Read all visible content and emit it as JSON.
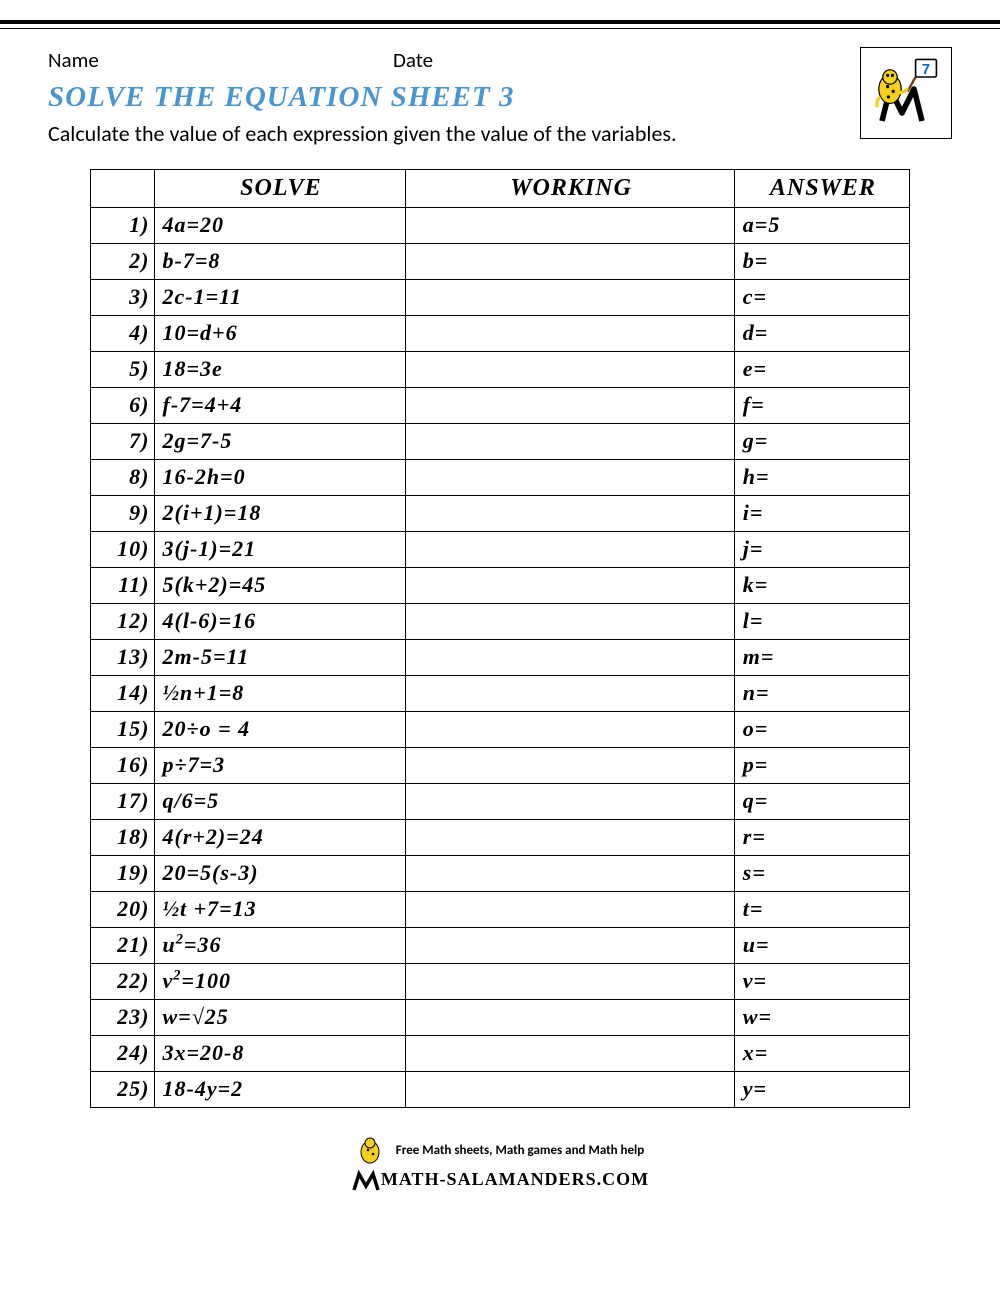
{
  "header": {
    "name_label": "Name",
    "date_label": "Date",
    "grade_badge": "7"
  },
  "title": "SOLVE THE EQUATION SHEET 3",
  "instructions": "Calculate the value of each expression given the value of the variables.",
  "columns": {
    "solve": "SOLVE",
    "working": "WORKING",
    "answer": "ANSWER"
  },
  "rows": [
    {
      "n": "1)",
      "solve": "4a=20",
      "answer": "a=5"
    },
    {
      "n": "2)",
      "solve": "b-7=8",
      "answer": "b="
    },
    {
      "n": "3)",
      "solve": "2c-1=11",
      "answer": "c="
    },
    {
      "n": "4)",
      "solve": "10=d+6",
      "answer": "d="
    },
    {
      "n": "5)",
      "solve": "18=3e",
      "answer": "e="
    },
    {
      "n": "6)",
      "solve": "f-7=4+4",
      "answer": "f="
    },
    {
      "n": "7)",
      "solve": "2g=7-5",
      "answer": "g="
    },
    {
      "n": "8)",
      "solve": "16-2h=0",
      "answer": "h="
    },
    {
      "n": "9)",
      "solve": "2(i+1)=18",
      "answer": "i="
    },
    {
      "n": "10)",
      "solve": "3(j-1)=21",
      "answer": "j="
    },
    {
      "n": "11)",
      "solve": "5(k+2)=45",
      "answer": "k="
    },
    {
      "n": "12)",
      "solve": "4(l-6)=16",
      "answer": "l="
    },
    {
      "n": "13)",
      "solve": "2m-5=11",
      "answer": "m="
    },
    {
      "n": "14)",
      "solve": "½n+1=8",
      "answer": "n="
    },
    {
      "n": "15)",
      "solve": "20÷o = 4",
      "answer": "o="
    },
    {
      "n": "16)",
      "solve": "p÷7=3",
      "answer": "p="
    },
    {
      "n": "17)",
      "solve": "q/6=5",
      "answer": "q="
    },
    {
      "n": "18)",
      "solve": "4(r+2)=24",
      "answer": "r="
    },
    {
      "n": "19)",
      "solve": "20=5(s-3)",
      "answer": "s="
    },
    {
      "n": "20)",
      "solve": "½t +7=13",
      "answer": "t="
    },
    {
      "n": "21)",
      "solve": "u²=36",
      "answer": "u="
    },
    {
      "n": "22)",
      "solve": "v²=100",
      "answer": "v="
    },
    {
      "n": "23)",
      "solve": "w=√25",
      "answer": "w="
    },
    {
      "n": "24)",
      "solve": "3x=20-8",
      "answer": "x="
    },
    {
      "n": "25)",
      "solve": "18-4y=2",
      "answer": "y="
    }
  ],
  "footer": {
    "line1": "Free Math sheets, Math games and Math help",
    "line2": "MATH-SALAMANDERS.COM"
  },
  "colors": {
    "title": "#4896d1",
    "text": "#000000",
    "border": "#000000",
    "background": "#ffffff",
    "logo_yellow": "#f5d017",
    "logo_brown": "#6b3f17"
  }
}
